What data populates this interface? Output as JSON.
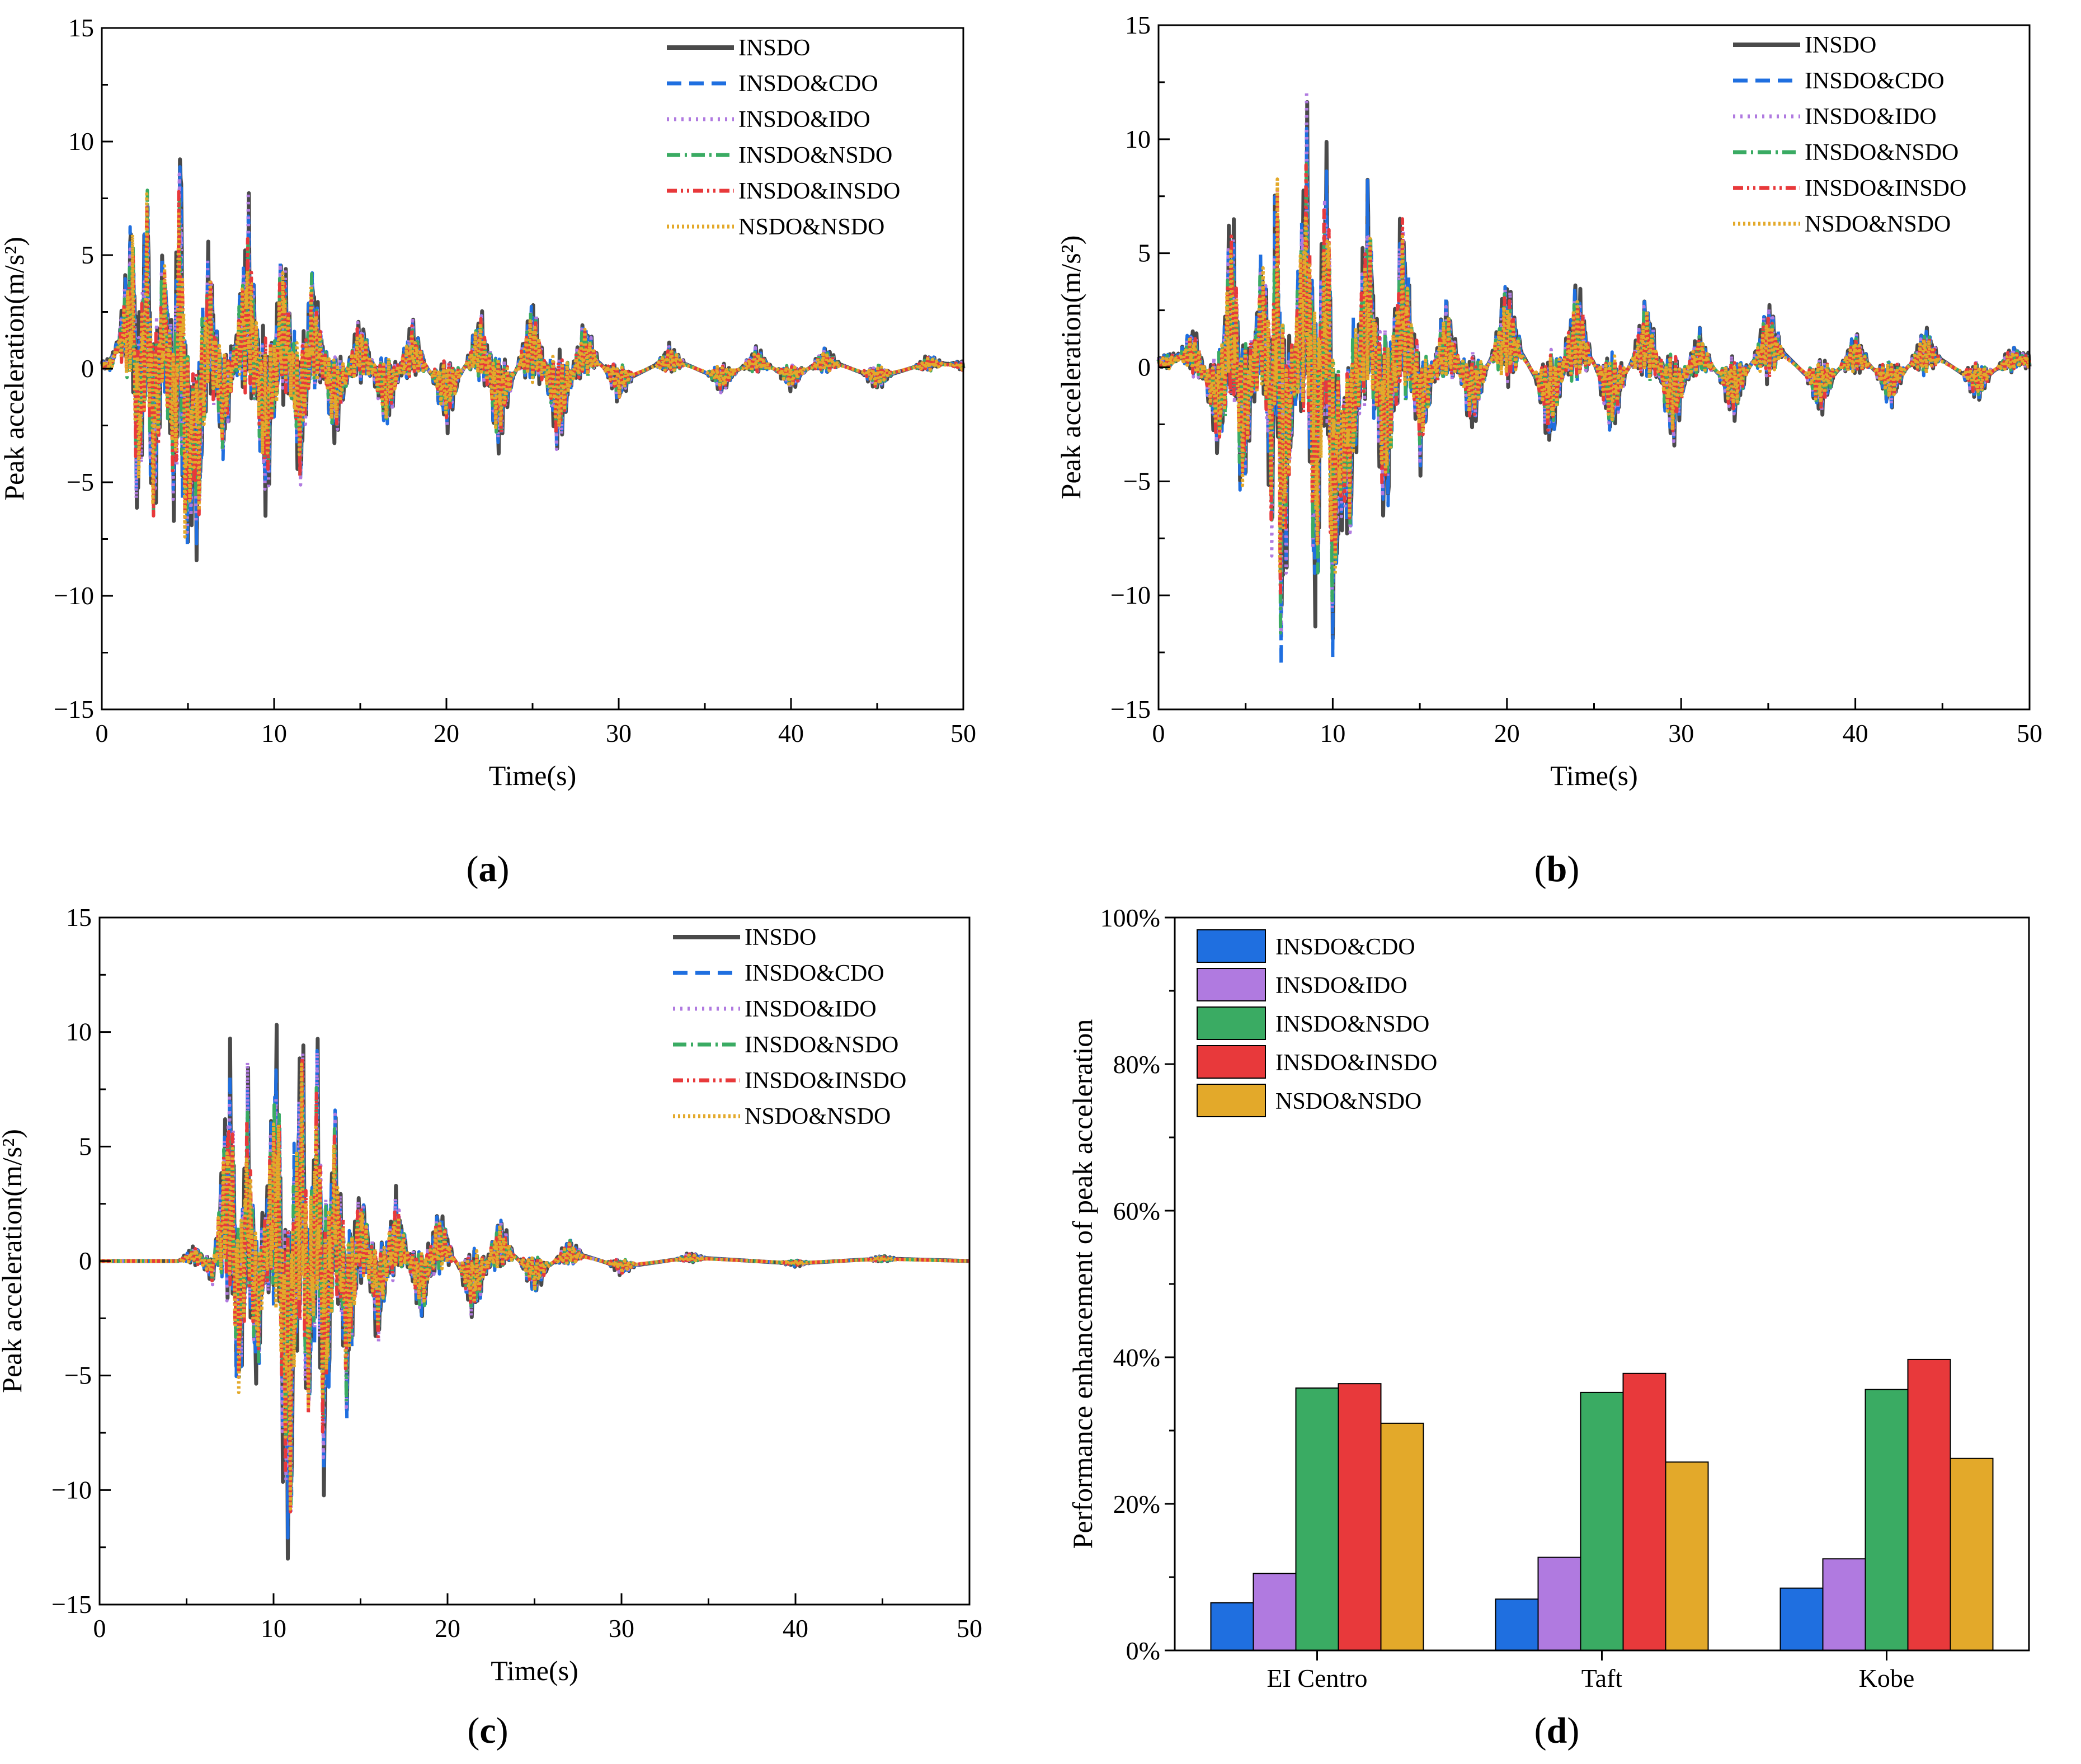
{
  "figure": {
    "panel_labels": [
      {
        "open": "(",
        "letter": "a",
        "close": ")"
      },
      {
        "open": "(",
        "letter": "b",
        "close": ")"
      },
      {
        "open": "(",
        "letter": "c",
        "close": ")"
      },
      {
        "open": "(",
        "letter": "d",
        "close": ")"
      }
    ]
  },
  "colors": {
    "INSDO": "#4a4a4a",
    "INSDO&CDO": "#1f6fe0",
    "INSDO&IDO": "#b07ae0",
    "INSDO&NSDO": "#3aab63",
    "INSDO&INSDO": "#e8393b",
    "NSDO&NSDO": "#e3a92a"
  },
  "chart_data": [
    {
      "type": "line",
      "panel": "a",
      "xlabel": "Time(s)",
      "ylabel": "Peak acceleration(m/s²)",
      "xlim": [
        0,
        50
      ],
      "ylim": [
        -15,
        15
      ],
      "xticks": [
        0,
        10,
        20,
        30,
        40,
        50
      ],
      "yticks": [
        -15,
        -10,
        -5,
        0,
        5,
        10,
        15
      ],
      "legend": [
        "INSDO",
        "INSDO&CDO",
        "INSDO&IDO",
        "INSDO&NSDO",
        "INSDO&INSDO",
        "NSDO&NSDO"
      ],
      "legend_position": "top-right",
      "peaks": [
        {
          "t": 0.5,
          "a": 0.4
        },
        {
          "t": 1.8,
          "a": 5.5
        },
        {
          "t": 2.1,
          "a": -6.4
        },
        {
          "t": 2.6,
          "a": 7.5
        },
        {
          "t": 3.0,
          "a": -6.5
        },
        {
          "t": 3.6,
          "a": 5.0
        },
        {
          "t": 4.2,
          "a": -5.5
        },
        {
          "t": 4.6,
          "a": 9.9
        },
        {
          "t": 4.8,
          "a": -7.6
        },
        {
          "t": 5.6,
          "a": -6.4
        },
        {
          "t": 6.2,
          "a": 4.6
        },
        {
          "t": 7.0,
          "a": -3.4
        },
        {
          "t": 8.5,
          "a": 5.9
        },
        {
          "t": 9.5,
          "a": -5.5
        },
        {
          "t": 10.5,
          "a": 4.8
        },
        {
          "t": 11.5,
          "a": -4.4
        },
        {
          "t": 12.2,
          "a": 3.8
        },
        {
          "t": 13.5,
          "a": -2.8
        },
        {
          "t": 15.0,
          "a": 2.0
        },
        {
          "t": 16.5,
          "a": -2.3
        },
        {
          "t": 18.0,
          "a": 1.8
        },
        {
          "t": 20.0,
          "a": -2.2
        },
        {
          "t": 22.0,
          "a": 2.2
        },
        {
          "t": 23.0,
          "a": -3.1
        },
        {
          "t": 25.0,
          "a": 2.6
        },
        {
          "t": 26.5,
          "a": -3.1
        },
        {
          "t": 28.0,
          "a": 1.8
        },
        {
          "t": 30.0,
          "a": -1.2
        },
        {
          "t": 33.0,
          "a": 0.9
        },
        {
          "t": 36.0,
          "a": -0.9
        },
        {
          "t": 38.0,
          "a": 0.8
        },
        {
          "t": 40.0,
          "a": -0.8
        },
        {
          "t": 42.0,
          "a": 0.8
        },
        {
          "t": 45.0,
          "a": -0.8
        },
        {
          "t": 48.0,
          "a": 0.5
        },
        {
          "t": 50.0,
          "a": 0.3
        }
      ]
    },
    {
      "type": "line",
      "panel": "b",
      "xlabel": "Time(s)",
      "ylabel": "Peak acceleration(m/s²)",
      "xlim": [
        0,
        50
      ],
      "ylim": [
        -15,
        15
      ],
      "xticks": [
        0,
        10,
        20,
        30,
        40,
        50
      ],
      "yticks": [
        -15,
        -10,
        -5,
        0,
        5,
        10,
        15
      ],
      "legend": [
        "INSDO",
        "INSDO&CDO",
        "INSDO&IDO",
        "INSDO&NSDO",
        "INSDO&INSDO",
        "NSDO&NSDO"
      ],
      "legend_position": "top-right",
      "peaks": [
        {
          "t": 0.5,
          "a": 0.5
        },
        {
          "t": 2.0,
          "a": 1.5
        },
        {
          "t": 3.5,
          "a": -3.5
        },
        {
          "t": 4.2,
          "a": 6.2
        },
        {
          "t": 4.8,
          "a": -5.4
        },
        {
          "t": 6.0,
          "a": 4.7
        },
        {
          "t": 6.5,
          "a": -6.4
        },
        {
          "t": 6.8,
          "a": 8.8
        },
        {
          "t": 7.0,
          "a": -11.0
        },
        {
          "t": 8.5,
          "a": 9.2
        },
        {
          "t": 9.0,
          "a": -10.4
        },
        {
          "t": 9.7,
          "a": 9.8
        },
        {
          "t": 9.9,
          "a": -10.5
        },
        {
          "t": 11.0,
          "a": -6.3
        },
        {
          "t": 12.0,
          "a": 6.6
        },
        {
          "t": 13.0,
          "a": -6.4
        },
        {
          "t": 14.0,
          "a": 5.9
        },
        {
          "t": 15.0,
          "a": -3.5
        },
        {
          "t": 16.5,
          "a": 2.5
        },
        {
          "t": 18.0,
          "a": -2.4
        },
        {
          "t": 20.0,
          "a": 3.3
        },
        {
          "t": 22.5,
          "a": -3.0
        },
        {
          "t": 24.0,
          "a": 3.2
        },
        {
          "t": 26.0,
          "a": -2.6
        },
        {
          "t": 28.0,
          "a": 2.6
        },
        {
          "t": 29.5,
          "a": -2.9
        },
        {
          "t": 31.0,
          "a": 1.4
        },
        {
          "t": 33.0,
          "a": -2.0
        },
        {
          "t": 35.0,
          "a": 2.4
        },
        {
          "t": 38.0,
          "a": -1.8
        },
        {
          "t": 40.0,
          "a": 1.3
        },
        {
          "t": 42.0,
          "a": -1.5
        },
        {
          "t": 44.0,
          "a": 1.5
        },
        {
          "t": 47.0,
          "a": -1.3
        },
        {
          "t": 49.0,
          "a": 0.8
        },
        {
          "t": 50.0,
          "a": 0.6
        }
      ]
    },
    {
      "type": "line",
      "panel": "c",
      "xlabel": "Time(s)",
      "ylabel": "Peak acceleration(m/s²)",
      "xlim": [
        0,
        50
      ],
      "ylim": [
        -15,
        15
      ],
      "xticks": [
        0,
        10,
        20,
        30,
        40,
        50
      ],
      "yticks": [
        -15,
        -10,
        -5,
        0,
        5,
        10,
        15
      ],
      "legend": [
        "INSDO",
        "INSDO&CDO",
        "INSDO&IDO",
        "INSDO&NSDO",
        "INSDO&INSDO",
        "NSDO&NSDO"
      ],
      "legend_position": "top-right",
      "peaks": [
        {
          "t": 0.0,
          "a": 0.0
        },
        {
          "t": 4.5,
          "a": 0.0
        },
        {
          "t": 5.5,
          "a": 0.6
        },
        {
          "t": 6.5,
          "a": -0.8
        },
        {
          "t": 7.5,
          "a": 7.4
        },
        {
          "t": 8.0,
          "a": -6.0
        },
        {
          "t": 8.5,
          "a": 6.6
        },
        {
          "t": 9.0,
          "a": -4.9
        },
        {
          "t": 10.2,
          "a": 8.7
        },
        {
          "t": 10.5,
          "a": -6.0
        },
        {
          "t": 10.9,
          "a": -11.6
        },
        {
          "t": 11.6,
          "a": 9.6
        },
        {
          "t": 12.0,
          "a": -7.0
        },
        {
          "t": 12.5,
          "a": 8.3
        },
        {
          "t": 12.9,
          "a": -8.6
        },
        {
          "t": 13.5,
          "a": 5.7
        },
        {
          "t": 14.2,
          "a": -5.5
        },
        {
          "t": 15.0,
          "a": 3.0
        },
        {
          "t": 16.0,
          "a": -3.0
        },
        {
          "t": 17.0,
          "a": 2.5
        },
        {
          "t": 18.5,
          "a": -2.2
        },
        {
          "t": 19.5,
          "a": 2.0
        },
        {
          "t": 21.5,
          "a": -2.2
        },
        {
          "t": 23.0,
          "a": 1.6
        },
        {
          "t": 25.0,
          "a": -1.2
        },
        {
          "t": 27.0,
          "a": 0.8
        },
        {
          "t": 30.0,
          "a": -0.5
        },
        {
          "t": 34.0,
          "a": 0.3
        },
        {
          "t": 40.0,
          "a": -0.2
        },
        {
          "t": 45.0,
          "a": 0.2
        },
        {
          "t": 50.0,
          "a": 0.0
        }
      ]
    },
    {
      "type": "bar",
      "panel": "d",
      "xlabel": "",
      "ylabel": "Performance enhancement of peak acceleration",
      "categories": [
        "EI Centro",
        "Taft",
        "Kobe"
      ],
      "ylim": [
        0,
        100
      ],
      "yticks": [
        "0%",
        "20%",
        "40%",
        "60%",
        "80%",
        "100%"
      ],
      "legend_position": "top-left",
      "series": [
        {
          "name": "INSDO&CDO",
          "values": [
            6.5,
            7.0,
            8.5
          ]
        },
        {
          "name": "INSDO&IDO",
          "values": [
            10.5,
            12.7,
            12.5
          ]
        },
        {
          "name": "INSDO&NSDO",
          "values": [
            35.8,
            35.2,
            35.6
          ]
        },
        {
          "name": "INSDO&INSDO",
          "values": [
            36.4,
            37.8,
            39.7
          ]
        },
        {
          "name": "NSDO&NSDO",
          "values": [
            31.0,
            25.7,
            26.2
          ]
        }
      ]
    }
  ]
}
